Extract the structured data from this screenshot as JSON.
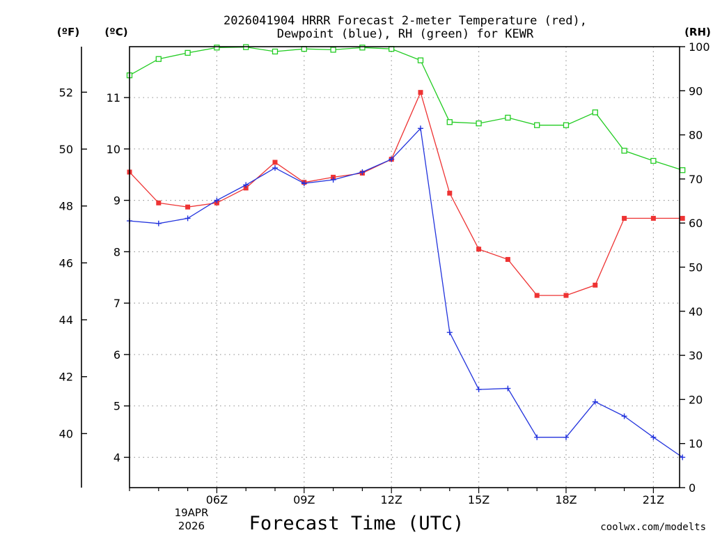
{
  "chart_data": {
    "type": "line",
    "title_line1": "2026041904 HRRR Forecast 2-meter Temperature (red),",
    "title_line2": "Dewpoint (blue), RH (green) for KEWR",
    "xlabel": "Forecast Time (UTC)",
    "left_axis_f_label": "(ºF)",
    "left_axis_c_label": "(ºC)",
    "right_axis_label": "(RH)",
    "date_label_line1": "19APR",
    "date_label_line2": "2026",
    "watermark": "coolwx.com/modelts",
    "x_range_hours": [
      3,
      21.9
    ],
    "x_ticks": [
      {
        "hour": 6,
        "label": "06Z"
      },
      {
        "hour": 9,
        "label": "09Z"
      },
      {
        "hour": 12,
        "label": "12Z"
      },
      {
        "hour": 15,
        "label": "15Z"
      },
      {
        "hour": 18,
        "label": "18Z"
      },
      {
        "hour": 21,
        "label": "21Z"
      }
    ],
    "y_range_c": [
      3.41,
      11.99
    ],
    "y_ticks_c": [
      4,
      5,
      6,
      7,
      8,
      9,
      10,
      11
    ],
    "f_range": [
      38.1,
      53.6
    ],
    "y_ticks_f": [
      40,
      42,
      44,
      46,
      48,
      50,
      52
    ],
    "rh_range": [
      0,
      100
    ],
    "y_ticks_rh": [
      0,
      10,
      20,
      30,
      40,
      50,
      60,
      70,
      80,
      90,
      100
    ],
    "hours": [
      3,
      4,
      5,
      6,
      7,
      8,
      9,
      10,
      11,
      12,
      13,
      14,
      15,
      16,
      17,
      18,
      19,
      20,
      21,
      22
    ],
    "series": [
      {
        "name": "Temperature",
        "axis": "celsius",
        "color": "#ee3333",
        "marker": "filled-square",
        "values": [
          9.55,
          8.95,
          8.87,
          8.95,
          9.24,
          9.74,
          9.35,
          9.45,
          9.53,
          9.8,
          11.1,
          9.14,
          8.05,
          7.85,
          7.15,
          7.15,
          7.35,
          8.65,
          8.65,
          8.65
        ]
      },
      {
        "name": "Dewpoint",
        "axis": "celsius",
        "color": "#2233dd",
        "marker": "plus",
        "values": [
          8.6,
          8.55,
          8.65,
          9.0,
          9.3,
          9.63,
          9.33,
          9.4,
          9.55,
          9.8,
          10.4,
          6.43,
          5.32,
          5.34,
          4.39,
          4.39,
          5.08,
          4.8,
          4.39,
          4.0
        ]
      },
      {
        "name": "Relative Humidity",
        "axis": "rh",
        "color": "#22cc22",
        "marker": "open-square",
        "values": [
          93.5,
          97.2,
          98.6,
          99.8,
          99.9,
          98.9,
          99.5,
          99.3,
          99.8,
          99.5,
          96.9,
          82.9,
          82.6,
          83.9,
          82.2,
          82.2,
          85.1,
          76.4,
          74.1,
          72.0
        ]
      }
    ]
  }
}
